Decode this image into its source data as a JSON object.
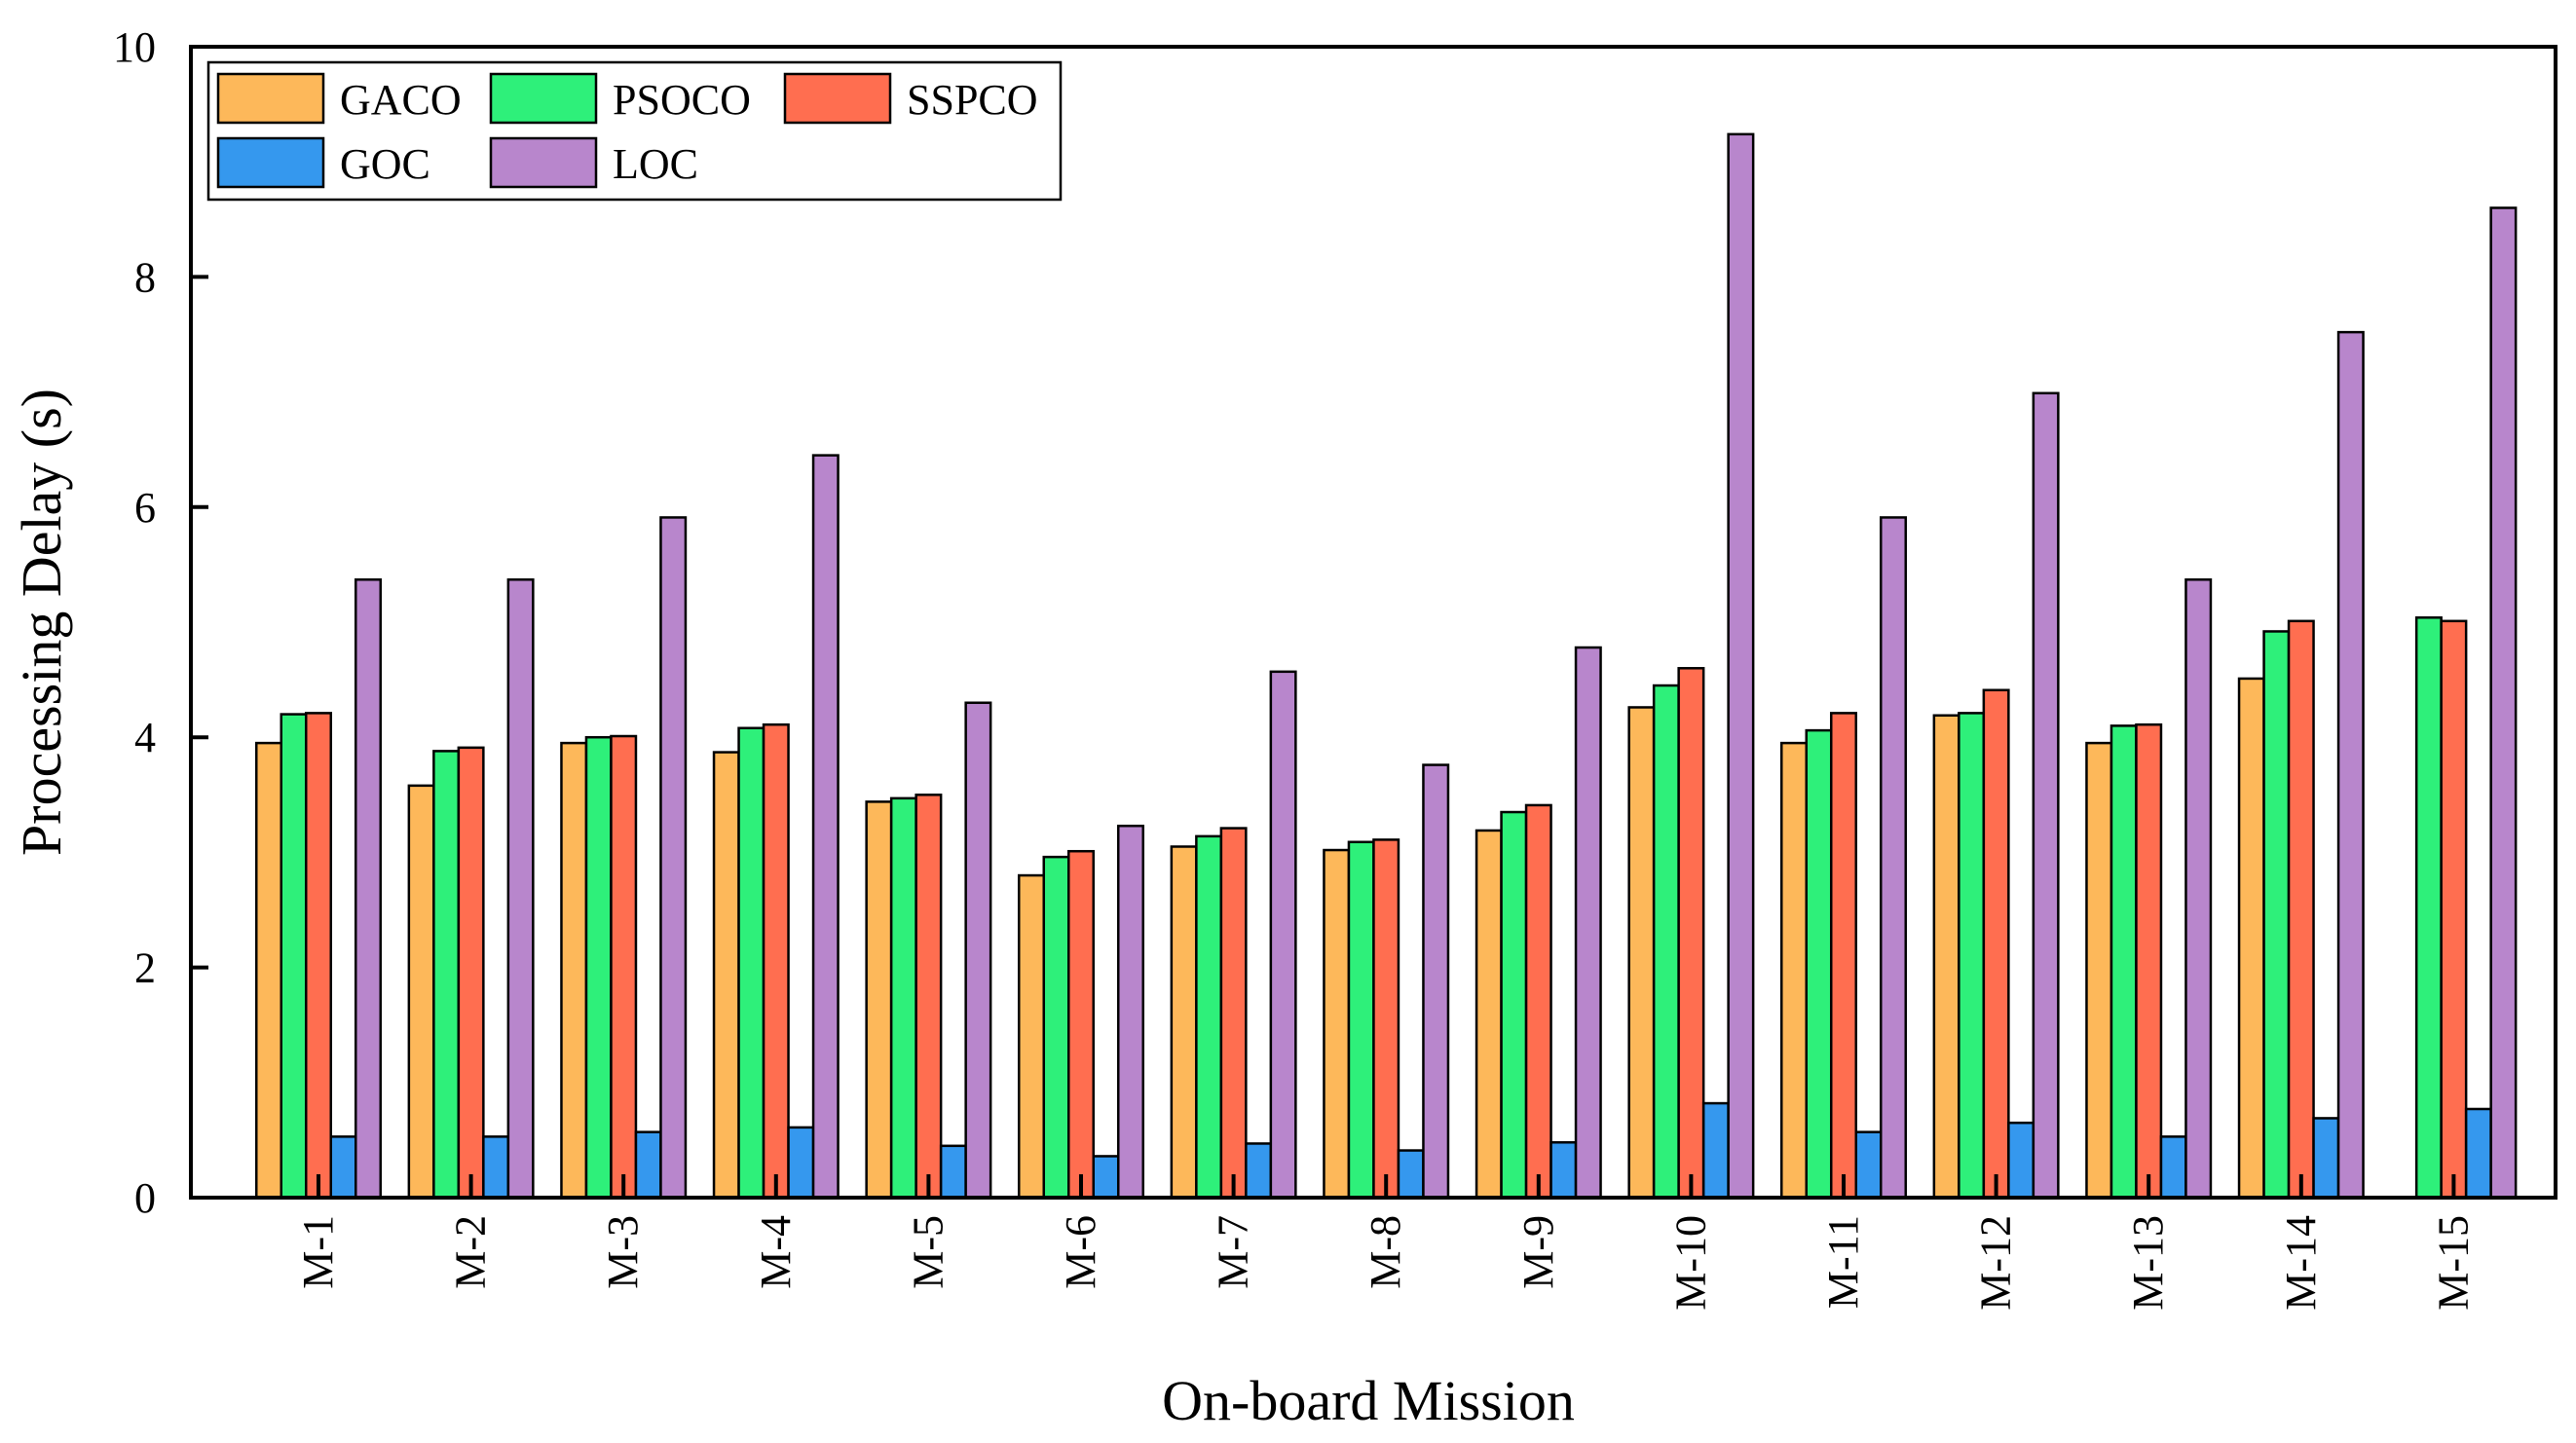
{
  "chart_data": {
    "type": "bar",
    "title": "",
    "xlabel": "On-board Mission",
    "ylabel": "Processing Delay (s)",
    "ylim": [
      0,
      10
    ],
    "yticks": [
      0,
      2,
      4,
      6,
      8,
      10
    ],
    "grid": false,
    "legend_position": "top-left",
    "categories": [
      "M-1",
      "M-2",
      "M-3",
      "M-4",
      "M-5",
      "M-6",
      "M-7",
      "M-8",
      "M-9",
      "M-10",
      "M-11",
      "M-12",
      "M-13",
      "M-14",
      "M-15"
    ],
    "series": [
      {
        "name": "GACO",
        "color": "#FDB85A",
        "values": [
          3.95,
          3.58,
          3.95,
          3.87,
          3.44,
          2.8,
          3.05,
          3.02,
          3.19,
          4.26,
          3.95,
          4.19,
          3.95,
          4.51,
          0
        ]
      },
      {
        "name": "PSOCO",
        "color": "#2EF07A",
        "values": [
          4.2,
          3.88,
          4.0,
          4.08,
          3.47,
          2.96,
          3.14,
          3.09,
          3.35,
          4.45,
          4.06,
          4.21,
          4.1,
          4.92,
          5.04
        ]
      },
      {
        "name": "SSPCO",
        "color": "#FF6E50",
        "values": [
          4.21,
          3.91,
          4.01,
          4.11,
          3.5,
          3.01,
          3.21,
          3.11,
          3.41,
          4.6,
          4.21,
          4.41,
          4.11,
          5.01,
          5.01
        ]
      },
      {
        "name": "GOC",
        "color": "#3598EE",
        "values": [
          0.53,
          0.53,
          0.57,
          0.61,
          0.45,
          0.36,
          0.47,
          0.41,
          0.48,
          0.82,
          0.57,
          0.65,
          0.53,
          0.69,
          0.77
        ]
      },
      {
        "name": "LOC",
        "color": "#B886CC",
        "values": [
          5.37,
          5.37,
          5.91,
          6.45,
          4.3,
          3.23,
          4.57,
          3.76,
          4.78,
          9.24,
          5.91,
          6.99,
          5.37,
          7.52,
          8.6
        ]
      }
    ],
    "legend_order": [
      "GACO",
      "PSOCO",
      "SSPCO",
      "GOC",
      "LOC"
    ]
  }
}
